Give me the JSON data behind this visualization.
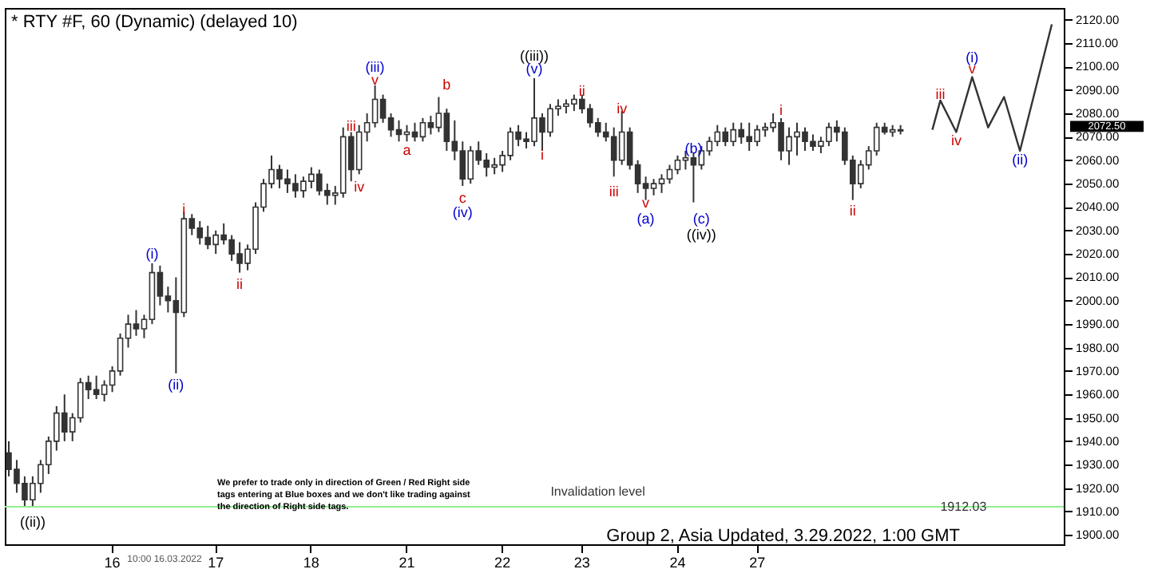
{
  "chart_data": {
    "type": "candlestick",
    "title": "* RTY #F, 60 (Dynamic) (delayed 10)",
    "color": "#333333",
    "categories": [
      null,
      null,
      null,
      null,
      null,
      null,
      null,
      null,
      null,
      null,
      null,
      null,
      null,
      "16",
      null,
      null,
      null,
      null,
      null,
      null,
      null,
      null,
      null,
      null,
      null,
      null,
      "17",
      null,
      null,
      null,
      null,
      null,
      null,
      null,
      null,
      null,
      null,
      null,
      "18",
      null,
      null,
      null,
      null,
      null,
      null,
      null,
      null,
      null,
      null,
      null,
      "21",
      null,
      null,
      null,
      null,
      null,
      null,
      null,
      null,
      null,
      null,
      null,
      "22",
      null,
      null,
      null,
      null,
      null,
      null,
      null,
      null,
      null,
      "23",
      null,
      null,
      null,
      null,
      null,
      null,
      null,
      null,
      null,
      null,
      null,
      "24",
      null,
      null,
      null,
      null,
      null,
      null,
      null,
      null,
      null,
      "27",
      null,
      null,
      null,
      null,
      null,
      null,
      null,
      null,
      null,
      null,
      null,
      null,
      null,
      null,
      null,
      null,
      null,
      null,
      null,
      null,
      null,
      null,
      null,
      null,
      null,
      null,
      null,
      null,
      null,
      null,
      null,
      null,
      null,
      null,
      null,
      null,
      null,
      null
    ],
    "ohlc": [
      [
        1935,
        1940,
        1925,
        1928
      ],
      [
        1928,
        1932,
        1918,
        1922
      ],
      [
        1922,
        1925,
        1912,
        1915
      ],
      [
        1915,
        1925,
        1912,
        1922
      ],
      [
        1922,
        1932,
        1918,
        1930
      ],
      [
        1930,
        1942,
        1926,
        1940
      ],
      [
        1940,
        1955,
        1936,
        1952
      ],
      [
        1952,
        1960,
        1940,
        1944
      ],
      [
        1944,
        1952,
        1940,
        1950
      ],
      [
        1950,
        1967,
        1948,
        1965
      ],
      [
        1965,
        1968,
        1958,
        1962
      ],
      [
        1962,
        1968,
        1958,
        1960
      ],
      [
        1960,
        1966,
        1957,
        1964
      ],
      [
        1964,
        1972,
        1961,
        1970
      ],
      [
        1970,
        1986,
        1968,
        1984
      ],
      [
        1984,
        1994,
        1980,
        1990
      ],
      [
        1990,
        1996,
        1985,
        1988
      ],
      [
        1988,
        1994,
        1984,
        1992
      ],
      [
        1992,
        2016,
        1990,
        2012
      ],
      [
        2012,
        2015,
        1998,
        2002
      ],
      [
        2002,
        2006,
        1995,
        2000
      ],
      [
        2000,
        2010,
        1969,
        1995
      ],
      [
        1995,
        2038,
        1993,
        2035
      ],
      [
        2035,
        2037,
        2028,
        2031
      ],
      [
        2031,
        2034,
        2024,
        2027
      ],
      [
        2027,
        2032,
        2022,
        2024
      ],
      [
        2024,
        2030,
        2020,
        2028
      ],
      [
        2028,
        2033,
        2024,
        2026
      ],
      [
        2026,
        2028,
        2017,
        2020
      ],
      [
        2020,
        2025,
        2012,
        2016
      ],
      [
        2016,
        2024,
        2013,
        2022
      ],
      [
        2022,
        2042,
        2020,
        2040
      ],
      [
        2040,
        2052,
        2038,
        2050
      ],
      [
        2050,
        2062,
        2048,
        2056
      ],
      [
        2056,
        2058,
        2048,
        2052
      ],
      [
        2052,
        2056,
        2046,
        2050
      ],
      [
        2050,
        2054,
        2044,
        2047
      ],
      [
        2047,
        2053,
        2044,
        2051
      ],
      [
        2051,
        2057,
        2048,
        2054
      ],
      [
        2054,
        2056,
        2045,
        2047
      ],
      [
        2047,
        2050,
        2041,
        2045
      ],
      [
        2045,
        2049,
        2041,
        2046
      ],
      [
        2046,
        2074,
        2044,
        2070
      ],
      [
        2070,
        2072,
        2051,
        2056
      ],
      [
        2056,
        2075,
        2054,
        2072
      ],
      [
        2072,
        2080,
        2068,
        2076
      ],
      [
        2076,
        2092,
        2074,
        2086
      ],
      [
        2086,
        2088,
        2076,
        2078
      ],
      [
        2078,
        2080,
        2070,
        2073
      ],
      [
        2073,
        2077,
        2068,
        2071
      ],
      [
        2071,
        2075,
        2068,
        2072
      ],
      [
        2072,
        2076,
        2068,
        2070
      ],
      [
        2070,
        2078,
        2068,
        2076
      ],
      [
        2076,
        2079,
        2071,
        2074
      ],
      [
        2074,
        2087,
        2072,
        2080
      ],
      [
        2080,
        2082,
        2064,
        2068
      ],
      [
        2068,
        2077,
        2060,
        2064
      ],
      [
        2064,
        2068,
        2049,
        2052
      ],
      [
        2052,
        2066,
        2050,
        2064
      ],
      [
        2064,
        2068,
        2058,
        2060
      ],
      [
        2060,
        2063,
        2053,
        2057
      ],
      [
        2057,
        2061,
        2054,
        2058
      ],
      [
        2058,
        2064,
        2055,
        2062
      ],
      [
        2062,
        2074,
        2060,
        2072
      ],
      [
        2072,
        2075,
        2066,
        2069
      ],
      [
        2069,
        2072,
        2065,
        2068
      ],
      [
        2068,
        2095,
        2066,
        2078
      ],
      [
        2078,
        2080,
        2064,
        2072
      ],
      [
        2072,
        2084,
        2070,
        2082
      ],
      [
        2082,
        2086,
        2079,
        2083
      ],
      [
        2083,
        2086,
        2080,
        2084
      ],
      [
        2084,
        2088,
        2081,
        2086
      ],
      [
        2086,
        2088,
        2080,
        2082
      ],
      [
        2082,
        2084,
        2074,
        2076
      ],
      [
        2076,
        2078,
        2070,
        2072
      ],
      [
        2072,
        2076,
        2068,
        2070
      ],
      [
        2070,
        2074,
        2053,
        2060
      ],
      [
        2060,
        2081,
        2058,
        2072
      ],
      [
        2072,
        2074,
        2056,
        2058
      ],
      [
        2058,
        2060,
        2046,
        2050
      ],
      [
        2050,
        2053,
        2043,
        2048
      ],
      [
        2048,
        2052,
        2045,
        2050
      ],
      [
        2050,
        2054,
        2046,
        2052
      ],
      [
        2052,
        2058,
        2050,
        2056
      ],
      [
        2056,
        2062,
        2054,
        2060
      ],
      [
        2060,
        2064,
        2056,
        2061
      ],
      [
        2061,
        2063,
        2042,
        2058
      ],
      [
        2058,
        2066,
        2056,
        2064
      ],
      [
        2064,
        2070,
        2062,
        2068
      ],
      [
        2068,
        2075,
        2066,
        2072
      ],
      [
        2072,
        2074,
        2066,
        2068
      ],
      [
        2068,
        2076,
        2066,
        2073
      ],
      [
        2073,
        2076,
        2067,
        2070
      ],
      [
        2070,
        2076,
        2064,
        2068
      ],
      [
        2068,
        2075,
        2066,
        2073
      ],
      [
        2073,
        2076,
        2070,
        2074
      ],
      [
        2074,
        2080,
        2072,
        2076
      ],
      [
        2076,
        2078,
        2060,
        2064
      ],
      [
        2064,
        2074,
        2058,
        2070
      ],
      [
        2070,
        2076,
        2062,
        2072
      ],
      [
        2072,
        2074,
        2064,
        2068
      ],
      [
        2068,
        2071,
        2064,
        2066
      ],
      [
        2066,
        2070,
        2063,
        2068
      ],
      [
        2068,
        2076,
        2066,
        2074
      ],
      [
        2074,
        2077,
        2068,
        2072
      ],
      [
        2072,
        2074,
        2058,
        2060
      ],
      [
        2060,
        2062,
        2043,
        2050
      ],
      [
        2050,
        2060,
        2048,
        2058
      ],
      [
        2058,
        2066,
        2056,
        2064
      ],
      [
        2064,
        2076,
        2062,
        2074
      ],
      [
        2074,
        2076,
        2071,
        2072
      ],
      [
        2072,
        2075,
        2070,
        2073
      ],
      [
        2073,
        2075,
        2071,
        2072.5
      ],
      null,
      null,
      null,
      null,
      null,
      null,
      null,
      null,
      null,
      null,
      null,
      null,
      null,
      null,
      null,
      null,
      null,
      null,
      null,
      null
    ],
    "series": [
      {
        "type": "line",
        "color": "#333333",
        "values": [
          null,
          null,
          null,
          null,
          null,
          null,
          null,
          null,
          null,
          null,
          null,
          null,
          null,
          null,
          null,
          null,
          null,
          null,
          null,
          null,
          null,
          null,
          null,
          null,
          null,
          null,
          null,
          null,
          null,
          null,
          null,
          null,
          null,
          null,
          null,
          null,
          null,
          null,
          null,
          null,
          null,
          null,
          null,
          null,
          null,
          null,
          null,
          null,
          null,
          null,
          null,
          null,
          null,
          null,
          null,
          null,
          null,
          null,
          null,
          null,
          null,
          null,
          null,
          null,
          null,
          null,
          null,
          null,
          null,
          null,
          null,
          null,
          null,
          null,
          null,
          null,
          null,
          null,
          null,
          null,
          null,
          null,
          null,
          null,
          null,
          null,
          null,
          null,
          null,
          null,
          null,
          null,
          null,
          null,
          null,
          null,
          null,
          null,
          null,
          null,
          null,
          null,
          null,
          null,
          null,
          null,
          null,
          null,
          null,
          null,
          null,
          null,
          null,
          null,
          null,
          null,
          2073,
          2085.5,
          null,
          2072,
          null,
          2095.5,
          null,
          2074,
          null,
          2087,
          null,
          2064,
          null,
          null,
          null,
          2118,
          null
        ]
      }
    ],
    "ylim": [
      1896,
      2125
    ],
    "yticks": [
      {
        "value": 1900,
        "label": "1900.00"
      },
      {
        "value": 1910,
        "label": "1910.00"
      },
      {
        "value": 1920,
        "label": "1920.00"
      },
      {
        "value": 1930,
        "label": "1930.00"
      },
      {
        "value": 1940,
        "label": "1940.00"
      },
      {
        "value": 1950,
        "label": "1950.00"
      },
      {
        "value": 1960,
        "label": "1960.00"
      },
      {
        "value": 1970,
        "label": "1970.00"
      },
      {
        "value": 1980,
        "label": "1980.00"
      },
      {
        "value": 1990,
        "label": "1990.00"
      },
      {
        "value": 2000,
        "label": "2000.00"
      },
      {
        "value": 2010,
        "label": "2010.00"
      },
      {
        "value": 2020,
        "label": "2020.00"
      },
      {
        "value": 2030,
        "label": "2030.00"
      },
      {
        "value": 2040,
        "label": "2040.00"
      },
      {
        "value": 2050,
        "label": "2050.00"
      },
      {
        "value": 2060,
        "label": "2060.00"
      },
      {
        "value": 2070,
        "label": "2070.00"
      },
      {
        "value": 2080,
        "label": "2080.00"
      },
      {
        "value": 2090,
        "label": "2090.00"
      },
      {
        "value": 2100,
        "label": "2100.00"
      },
      {
        "value": 2110,
        "label": "2110.00"
      },
      {
        "value": 2120,
        "label": "2120.00"
      }
    ],
    "ref_lines": [
      {
        "axis": "y",
        "value": 1912.03,
        "label": "Invalidation level",
        "color": "#90ee90"
      }
    ],
    "annotations": [
      "We prefer to trade only in direction of Green / Red Right side tags entering at Blue boxes and we don't like trading against the direction of Right side tags.",
      "Group 2, Asia Updated, 3.29.2022, 1:00 GMT",
      "10:00 16.03.2022",
      "1912.03",
      "2072.50",
      "((ii))",
      "(i)",
      "(ii)",
      "i",
      "ii",
      "iii",
      "iv",
      "v",
      "(iii)",
      "a",
      "b",
      "c",
      "(iv)",
      "((iii))",
      "(v)",
      "i",
      "ii",
      "iii",
      "iv",
      "v",
      "(a)",
      "(b)",
      "(c)",
      "((iv))",
      "i",
      "ii",
      "iii",
      "iv",
      "v",
      "(i)",
      "(ii)"
    ]
  }
}
